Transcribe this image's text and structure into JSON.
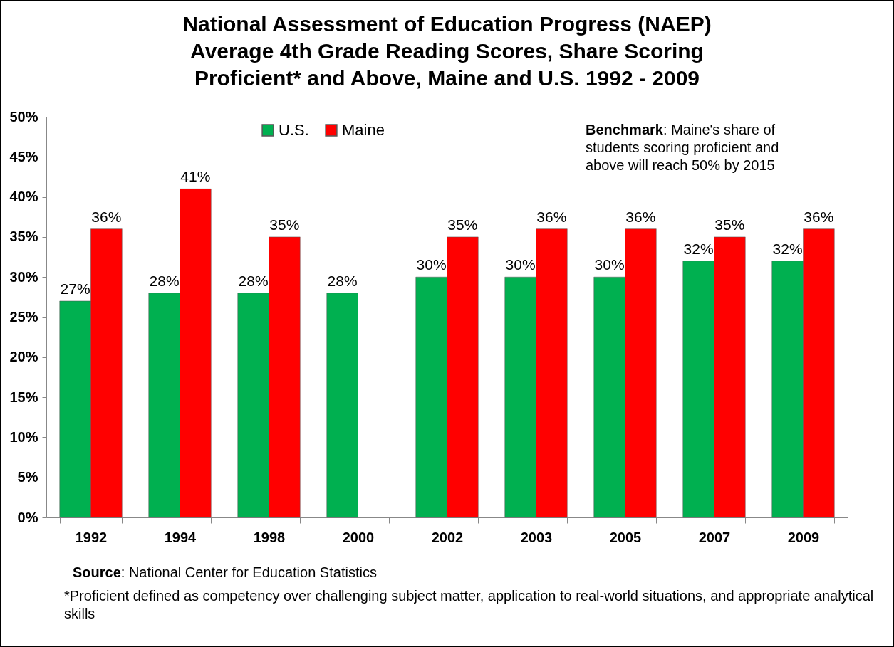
{
  "chart_data": {
    "type": "bar",
    "title": "National Assessment of Education Progress (NAEP)\nAverage 4th Grade Reading Scores, Share Scoring\nProficient* and Above, Maine and U.S. 1992 - 2009",
    "categories": [
      "1992",
      "1994",
      "1998",
      "2000",
      "2002",
      "2003",
      "2005",
      "2007",
      "2009"
    ],
    "series": [
      {
        "name": "U.S.",
        "color": "#00b050",
        "values": [
          27,
          28,
          28,
          28,
          30,
          30,
          30,
          32,
          32
        ],
        "value_labels": [
          "27%",
          "28%",
          "28%",
          "28%",
          "30%",
          "30%",
          "30%",
          "32%",
          "32%"
        ]
      },
      {
        "name": "Maine",
        "color": "#ff0000",
        "values": [
          36,
          41,
          35,
          null,
          35,
          36,
          36,
          35,
          36
        ],
        "value_labels": [
          "36%",
          "41%",
          "35%",
          null,
          "35%",
          "36%",
          "36%",
          "35%",
          "36%"
        ]
      }
    ],
    "ylim": [
      0,
      50
    ],
    "yticks": [
      {
        "value": 0,
        "label": "0%"
      },
      {
        "value": 5,
        "label": "5%"
      },
      {
        "value": 10,
        "label": "10%"
      },
      {
        "value": 15,
        "label": "15%"
      },
      {
        "value": 20,
        "label": "20%"
      },
      {
        "value": 25,
        "label": "25%"
      },
      {
        "value": 30,
        "label": "30%"
      },
      {
        "value": 35,
        "label": "35%"
      },
      {
        "value": 40,
        "label": "40%"
      },
      {
        "value": 45,
        "label": "45%"
      },
      {
        "value": 50,
        "label": "50%"
      }
    ],
    "grid": false,
    "legend": "top",
    "annotations": [
      "Benchmark: Maine's share of students scoring proficient and above will reach 50% by 2015",
      "Source:  National Center for Education Statistics",
      "*Proficient defined as  competency over challenging subject matter, application to real-world situations, and appropriate analytical skills"
    ]
  }
}
